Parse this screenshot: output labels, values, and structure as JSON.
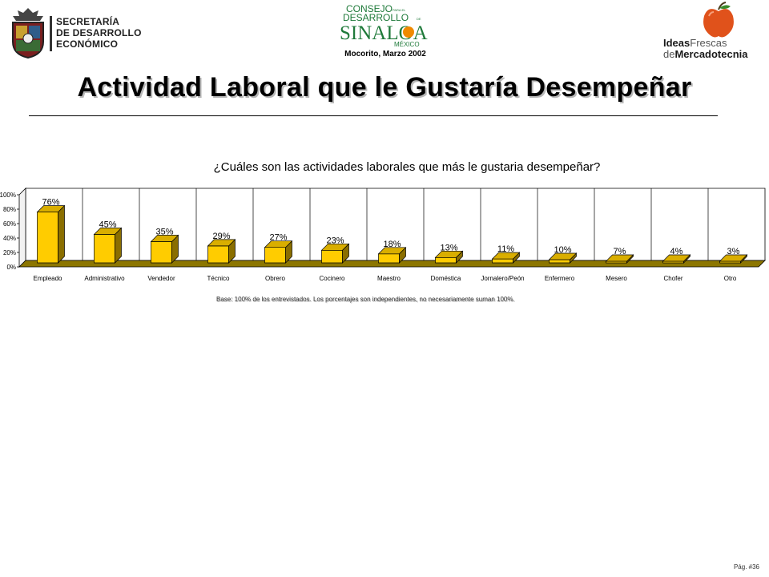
{
  "header": {
    "org_left_lines": [
      "SECRETARÍA",
      "DE DESARROLLO",
      "ECONÓMICO"
    ],
    "center_logo": {
      "line1": "CONSEJO",
      "line2": "DESARROLLO",
      "line3": "SINALOA",
      "line4": "MÉXICO",
      "small_para": "PARA EL",
      "small_de": "DE"
    },
    "date": "Mocorito, Marzo 2002",
    "right_logo": {
      "ideas": "Ideas",
      "frescas": "Frescas",
      "de": "de",
      "mercadotecnia": "Mercadotecnia"
    }
  },
  "page": {
    "title": "Actividad Laboral que le Gustaría Desempeñar",
    "note": "Base:   100% de los entrevistados. Los porcentajes son  independientes, no necesariamente suman 100%.",
    "page_number": "Pág. #36"
  },
  "colors": {
    "bar_front": "#FFCC00",
    "bar_top": "#D9AE00",
    "bar_side": "#8A6E00",
    "floor": "#8C7600",
    "wall": "#FFFFFF",
    "title_shadow": "#B8B8B8"
  },
  "chart_data": {
    "type": "bar",
    "title": "¿Cuáles son las actividades laborales que más le gustaria desempeñar?",
    "categories": [
      "Empleado",
      "Administrativo",
      "Vendedor",
      "Técnico",
      "Obrero",
      "Cocinero",
      "Maestro",
      "Doméstica",
      "Jornalero/Peón",
      "Enfermero",
      "Mesero",
      "Chofer",
      "Otro"
    ],
    "values": [
      76,
      45,
      35,
      29,
      27,
      23,
      18,
      13,
      11,
      10,
      7,
      4,
      3
    ],
    "value_labels": [
      "76%",
      "45%",
      "35%",
      "29%",
      "27%",
      "23%",
      "18%",
      "13%",
      "11%",
      "10%",
      "7%",
      "4%",
      "3%"
    ],
    "yticks": [
      "100%",
      "80%",
      "60%",
      "40%",
      "20%",
      "0%"
    ],
    "ylim": [
      0,
      100
    ],
    "grid": "vertical",
    "style": "3d"
  }
}
